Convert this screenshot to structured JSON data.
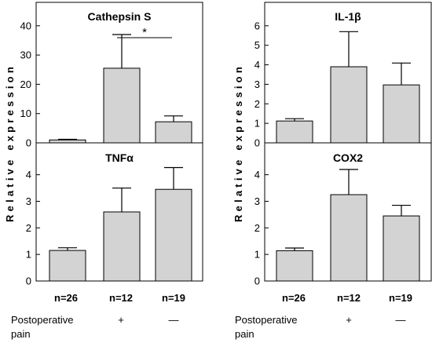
{
  "figure": {
    "ylabel": "Relative expression",
    "group_labels": [
      "n=26",
      "n=12",
      "n=19"
    ],
    "pain_label_line1": "Postoperative",
    "pain_label_line2": "pain",
    "pain_values": [
      "",
      "+",
      "—"
    ]
  },
  "chart_data": [
    {
      "type": "bar",
      "title": "Cathepsin S",
      "categories": [
        "n=26",
        "n=12",
        "n=19"
      ],
      "values": [
        1,
        25.5,
        7.2
      ],
      "errors": [
        0.2,
        11.5,
        2.0
      ],
      "ylim": [
        0,
        48
      ],
      "yticks": [
        0,
        10,
        20,
        30,
        40
      ],
      "annotation": {
        "text": "*",
        "from": 1,
        "to": 2
      }
    },
    {
      "type": "bar",
      "title": "IL-1β",
      "categories": [
        "n=26",
        "n=12",
        "n=19"
      ],
      "values": [
        1.12,
        3.9,
        2.97
      ],
      "errors": [
        0.12,
        1.8,
        1.12
      ],
      "ylim": [
        0,
        7.2
      ],
      "yticks": [
        0,
        1,
        2,
        3,
        4,
        5,
        6
      ]
    },
    {
      "type": "bar",
      "title": "TNFα",
      "categories": [
        "n=26",
        "n=12",
        "n=19"
      ],
      "values": [
        1.15,
        2.6,
        3.45
      ],
      "errors": [
        0.1,
        0.9,
        0.82
      ],
      "ylim": [
        0,
        5.2
      ],
      "yticks": [
        0,
        1,
        2,
        3,
        4
      ]
    },
    {
      "type": "bar",
      "title": "COX2",
      "categories": [
        "n=26",
        "n=12",
        "n=19"
      ],
      "values": [
        1.14,
        3.25,
        2.45
      ],
      "errors": [
        0.1,
        0.95,
        0.4
      ],
      "ylim": [
        0,
        5.2
      ],
      "yticks": [
        0,
        1,
        2,
        3,
        4
      ]
    }
  ]
}
